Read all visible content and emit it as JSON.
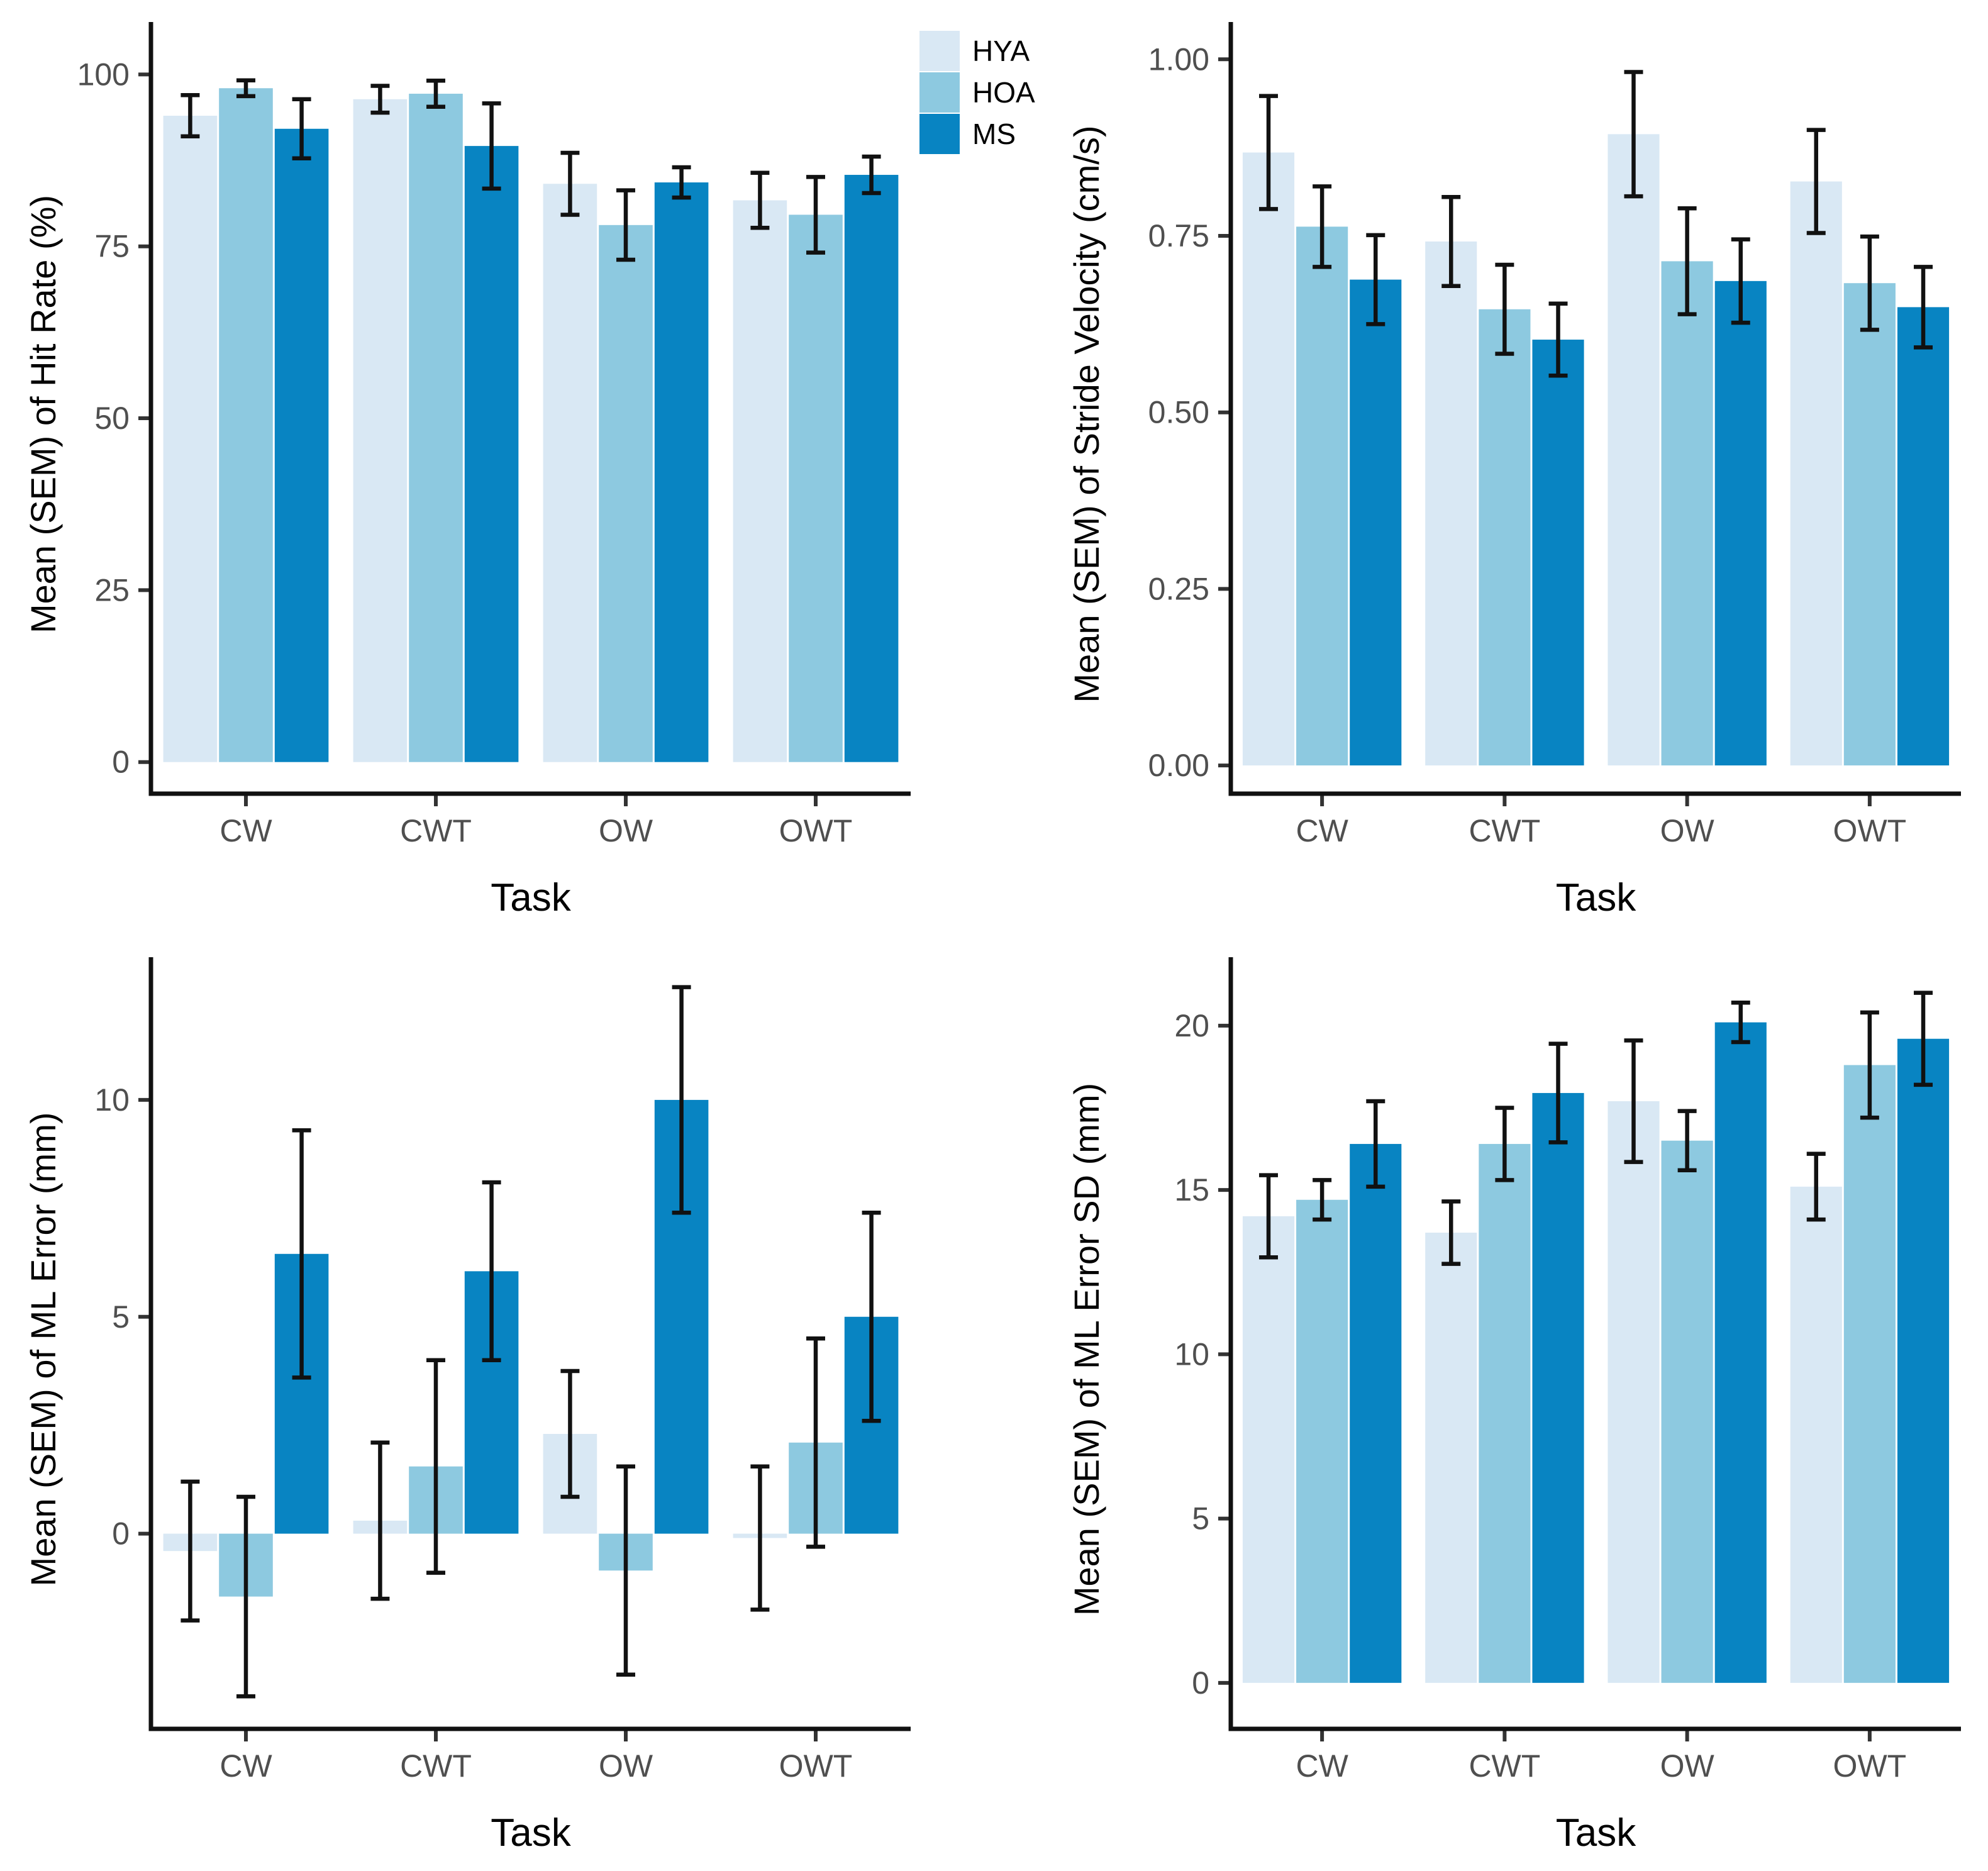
{
  "figure": {
    "colors": {
      "background": "#ffffff",
      "axis_line": "#111111",
      "tick_mark": "#333333",
      "tick_label": "#4f4f4f",
      "axis_title": "#000000",
      "error_bar": "#111111"
    },
    "legend": {
      "items": [
        {
          "label": "HYA",
          "color": "#d9e8f4"
        },
        {
          "label": "HOA",
          "color": "#8dc9e0"
        },
        {
          "label": "MS",
          "color": "#0884c2"
        }
      ]
    }
  },
  "chart_data": [
    {
      "id": "hit-rate",
      "type": "bar",
      "title": "",
      "xlabel": "Task",
      "ylabel": "Mean (SEM) of Hit Rate (%)",
      "categories": [
        "CW",
        "CWT",
        "OW",
        "OWT"
      ],
      "ytick_values": [
        0,
        25,
        50,
        75,
        100
      ],
      "ytick_labels": [
        "0",
        "25",
        "50",
        "75",
        "100"
      ],
      "ylim": [
        -4.6,
        105.8
      ],
      "error_bars": "SEM",
      "legend_position": "top-center",
      "grid": false,
      "series": [
        {
          "name": "HYA",
          "values": [
            94.0,
            96.4,
            84.1,
            81.7
          ],
          "sem": [
            3.0,
            1.95,
            4.5,
            4.0
          ]
        },
        {
          "name": "HOA",
          "values": [
            98.0,
            97.2,
            78.1,
            79.6
          ],
          "sem": [
            1.15,
            1.9,
            5.05,
            5.5
          ]
        },
        {
          "name": "MS",
          "values": [
            92.1,
            89.6,
            84.3,
            85.4
          ],
          "sem": [
            4.3,
            6.2,
            2.2,
            2.65
          ]
        }
      ]
    },
    {
      "id": "stride-velocity",
      "type": "bar",
      "title": "",
      "xlabel": "Task",
      "ylabel": "Mean (SEM) of Stride Velocity (cm/s)",
      "categories": [
        "CW",
        "CWT",
        "OW",
        "OWT"
      ],
      "ytick_values": [
        0,
        0.25,
        0.5,
        0.75,
        1.0
      ],
      "ytick_labels": [
        "0.00",
        "0.25",
        "0.50",
        "0.75",
        "1.00"
      ],
      "ylim": [
        -0.04,
        1.035
      ],
      "error_bars": "SEM",
      "grid": false,
      "series": [
        {
          "name": "HYA",
          "values": [
            0.868,
            0.742,
            0.894,
            0.827
          ],
          "sem": [
            0.08,
            0.063,
            0.088,
            0.073
          ]
        },
        {
          "name": "HOA",
          "values": [
            0.763,
            0.646,
            0.714,
            0.683
          ],
          "sem": [
            0.057,
            0.063,
            0.075,
            0.066
          ]
        },
        {
          "name": "MS",
          "values": [
            0.688,
            0.603,
            0.686,
            0.649
          ],
          "sem": [
            0.063,
            0.051,
            0.059,
            0.057
          ]
        }
      ]
    },
    {
      "id": "ml-error",
      "type": "bar",
      "title": "",
      "xlabel": "Task",
      "ylabel": "Mean (SEM) of ML Error (mm)",
      "categories": [
        "CW",
        "CWT",
        "OW",
        "OWT"
      ],
      "ytick_values": [
        0,
        5,
        10
      ],
      "ytick_labels": [
        "0",
        "5",
        "10"
      ],
      "ylim": [
        -4.5,
        13.0
      ],
      "error_bars": "SEM",
      "grid": false,
      "series": [
        {
          "name": "HYA",
          "values": [
            -0.4,
            0.3,
            2.3,
            -0.1
          ],
          "sem": [
            1.6,
            1.8,
            1.45,
            1.65
          ]
        },
        {
          "name": "HOA",
          "values": [
            -1.45,
            1.55,
            -0.85,
            2.1
          ],
          "sem": [
            2.3,
            2.45,
            2.4,
            2.4
          ]
        },
        {
          "name": "MS",
          "values": [
            6.45,
            6.05,
            10.0,
            5.0
          ],
          "sem": [
            2.85,
            2.05,
            2.6,
            2.4
          ]
        }
      ]
    },
    {
      "id": "ml-error-sd",
      "type": "bar",
      "title": "",
      "xlabel": "Task",
      "ylabel": "Mean (SEM) of ML Error SD (mm)",
      "categories": [
        "CW",
        "CWT",
        "OW",
        "OWT"
      ],
      "ytick_values": [
        0,
        5,
        10,
        15,
        20
      ],
      "ytick_labels": [
        "0",
        "5",
        "10",
        "15",
        "20"
      ],
      "ylim": [
        -1.4,
        21.7
      ],
      "error_bars": "SEM",
      "grid": false,
      "series": [
        {
          "name": "HYA",
          "values": [
            14.2,
            13.7,
            17.7,
            15.1
          ],
          "sem": [
            1.25,
            0.95,
            1.85,
            1.0
          ]
        },
        {
          "name": "HOA",
          "values": [
            14.7,
            16.4,
            16.5,
            18.8
          ],
          "sem": [
            0.6,
            1.1,
            0.9,
            1.6
          ]
        },
        {
          "name": "MS",
          "values": [
            16.4,
            17.95,
            20.1,
            19.6
          ],
          "sem": [
            1.3,
            1.5,
            0.6,
            1.4
          ]
        }
      ]
    }
  ]
}
